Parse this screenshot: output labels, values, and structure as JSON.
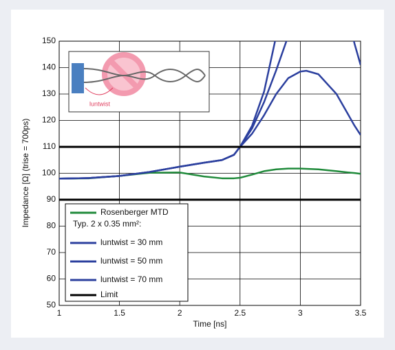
{
  "chart_data": {
    "type": "line",
    "x_label": "Time [ns]",
    "y_label": "Impedance [Ω]  (trise = 700ps)",
    "legend_heading": "Typ. 2 x 0.35 mm²:",
    "inset_label": "luntwist",
    "x": [
      1,
      1.25,
      1.5,
      1.75,
      2,
      2.2,
      2.35,
      2.45,
      2.5,
      2.6,
      2.7,
      2.8,
      2.9,
      3,
      3.05,
      3.15,
      3.3,
      3.4,
      3.45,
      3.5
    ],
    "series": [
      {
        "name": "Rosenberger MTD",
        "color": "#1f8a3a",
        "values": [
          98,
          98.1,
          99,
          100.2,
          100.3,
          98.8,
          98.1,
          98.1,
          98.3,
          99.5,
          100.8,
          101.5,
          101.8,
          101.8,
          101.7,
          101.5,
          100.8,
          100.3,
          100.1,
          99.8
        ]
      },
      {
        "name": "luntwist = 30 mm",
        "color": "#2b3f9e",
        "values": [
          98,
          98.2,
          99,
          100.5,
          102.5,
          104,
          105,
          107,
          110,
          115,
          122,
          130,
          136,
          138.5,
          138.8,
          137.5,
          130,
          122,
          118,
          114.5
        ]
      },
      {
        "name": "luntwist = 50 mm",
        "color": "#2b3f9e",
        "values": [
          98,
          98.2,
          99,
          100.5,
          102.5,
          104,
          105,
          107,
          110,
          117,
          127,
          139,
          152,
          null,
          null,
          null,
          null,
          158,
          149,
          141
        ]
      },
      {
        "name": "luntwist = 70 mm",
        "color": "#2b3f9e",
        "values": [
          98,
          98.2,
          99,
          100.5,
          102.5,
          104,
          105,
          107,
          110,
          118,
          131,
          152,
          null,
          null,
          null,
          null,
          null,
          null,
          null,
          null
        ]
      }
    ],
    "limit": {
      "name": "Limit",
      "color": "#000000",
      "levels": [
        90,
        110
      ]
    },
    "xlim": [
      1,
      3.5
    ],
    "xticks": [
      1,
      1.5,
      2,
      2.5,
      3,
      3.5
    ],
    "ylim": [
      50,
      150
    ],
    "yticks": [
      50,
      60,
      70,
      80,
      90,
      100,
      110,
      120,
      130,
      140,
      150
    ],
    "grid": true,
    "legend_position": "lower-left"
  }
}
